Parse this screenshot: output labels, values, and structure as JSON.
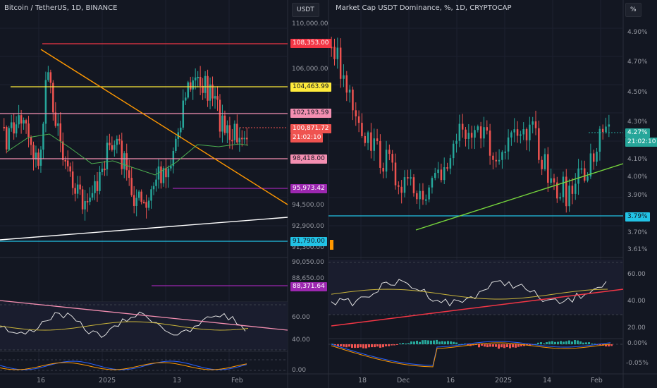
{
  "left_pane": {
    "title": "Bitcoin / TetherUS, 1D, BINANCE",
    "currency_button": "USDT",
    "price_labels": [
      "110,000.00",
      "106,000.00",
      "94,500.00",
      "92,900.00",
      "91,300.00",
      "90,050.00",
      "88,650.00"
    ],
    "tags": {
      "red": "108,353.00",
      "yellow": "104,463.99",
      "pink_top": "102,193.59",
      "last": "100,871.72",
      "countdown": "21:02:10",
      "pink_mid": "98,418.00",
      "purple_mid": "95,973.42",
      "cyan": "91,790.00",
      "purple_low": "88,371.64"
    },
    "osc_labels": [
      "60.00",
      "40.00",
      "0.00"
    ],
    "x_labels": [
      "16",
      "2025",
      "13",
      "Feb"
    ]
  },
  "right_pane": {
    "title": "Market Cap USDT Dominance, %, 1D, CRYPTOCAP",
    "unit_button": "%",
    "price_labels": [
      "4.90%",
      "4.70%",
      "4.50%",
      "4.30%",
      "4.10%",
      "4.00%",
      "3.90%",
      "3.70%",
      "3.61%"
    ],
    "tags": {
      "last": "4.27%",
      "countdown": "21:02:10",
      "cyan": "3.79%"
    },
    "osc_labels": [
      "60.00",
      "40.00",
      "20.00"
    ],
    "macd_labels": [
      "0.00%",
      "-0.05%"
    ],
    "x_labels": [
      "18",
      "Dec",
      "16",
      "2025",
      "14",
      "Feb"
    ]
  },
  "colors": {
    "background": "#131722",
    "up": "#26a69a",
    "down": "#ef5350",
    "red_line": "#f23645",
    "yellow_line": "#ffeb3b",
    "pink_line": "#f48fb1",
    "purple_line": "#9c27b0",
    "cyan_line": "#22c3e6",
    "orange_line": "#ff9800",
    "white_line": "#ffffff",
    "green_line": "#76d63c"
  }
}
